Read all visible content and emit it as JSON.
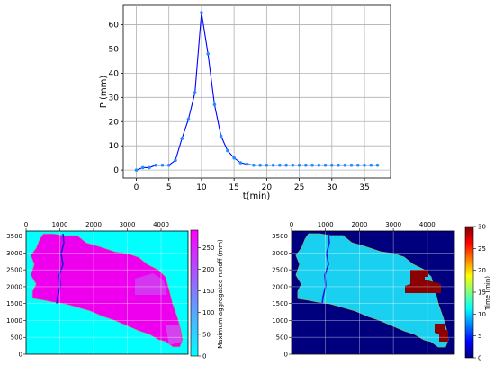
{
  "chart_data": [
    {
      "type": "line",
      "xlabel": "t(min)",
      "ylabel": "P (mm)",
      "xlim": [
        -2,
        39
      ],
      "ylim": [
        -3.3,
        68
      ],
      "xticks": [
        "0",
        "5",
        "10",
        "15",
        "20",
        "25",
        "30",
        "35"
      ],
      "yticks": [
        "0",
        "10",
        "20",
        "30",
        "40",
        "50",
        "60"
      ],
      "grid": true,
      "series": [
        {
          "color": "#0000ff",
          "marker_color": "#1e90ff",
          "x": [
            0,
            1,
            2,
            3,
            4,
            5,
            6,
            7,
            8,
            9,
            10,
            11,
            12,
            13,
            14,
            15,
            16,
            17,
            18,
            19,
            20,
            21,
            22,
            23,
            24,
            25,
            26,
            27,
            28,
            29,
            30,
            31,
            32,
            33,
            34,
            35,
            36,
            37
          ],
          "y": [
            0,
            1,
            1,
            2,
            2,
            2,
            4,
            13,
            21,
            32,
            65,
            48,
            27,
            14,
            8,
            5,
            3,
            2.4,
            2,
            2,
            2,
            2,
            2,
            2,
            2,
            2,
            2,
            2,
            2,
            2,
            2,
            2,
            2,
            2,
            2,
            2,
            2,
            2
          ]
        }
      ]
    },
    {
      "type": "heatmap",
      "xticks": [
        "0",
        "1000",
        "2000",
        "3000",
        "4000"
      ],
      "yticks": [
        "0",
        "500",
        "1000",
        "1500",
        "2000",
        "2500",
        "3000",
        "3500"
      ],
      "colorbar": {
        "label": "Maximum aggregated runoff (mm)",
        "ticks": [
          "0",
          "50",
          "100",
          "150",
          "200",
          "250"
        ],
        "range": [
          0,
          290
        ],
        "colormap": "cool"
      }
    },
    {
      "type": "heatmap",
      "xticks": [
        "0",
        "1000",
        "2000",
        "3000",
        "4000"
      ],
      "yticks": [
        "0",
        "500",
        "1000",
        "1500",
        "2000",
        "2500",
        "3000",
        "3500"
      ],
      "colorbar": {
        "label": "Time (min)",
        "ticks": [
          "0",
          "5",
          "10",
          "15",
          "20",
          "25",
          "30"
        ],
        "range": [
          0,
          30
        ],
        "colormap": "jet"
      }
    }
  ]
}
